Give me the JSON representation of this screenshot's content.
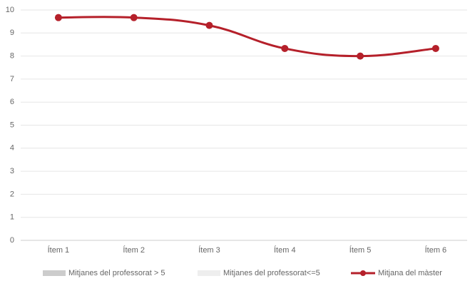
{
  "chart_data": {
    "type": "line",
    "categories": [
      "Ítem 1",
      "Ítem 2",
      "Ítem 3",
      "Ítem 4",
      "Ítem 5",
      "Ítem 6"
    ],
    "series": [
      {
        "name": "Mitjanes del professorat > 5",
        "type": "bar",
        "color": "#cccccc",
        "values": [
          null,
          null,
          null,
          null,
          null,
          null
        ]
      },
      {
        "name": "Mitjanes del professorat<=5",
        "type": "bar",
        "color": "#eeeeee",
        "values": [
          null,
          null,
          null,
          null,
          null,
          null
        ]
      },
      {
        "name": "Mitjana del màster",
        "type": "line",
        "color": "#b5202a",
        "values": [
          9.67,
          9.67,
          9.33,
          8.33,
          8.0,
          8.33
        ]
      }
    ],
    "ylim": [
      0,
      10
    ],
    "yticks": [
      0,
      1,
      2,
      3,
      4,
      5,
      6,
      7,
      8,
      9,
      10
    ],
    "grid": true,
    "legend": "bottom"
  }
}
